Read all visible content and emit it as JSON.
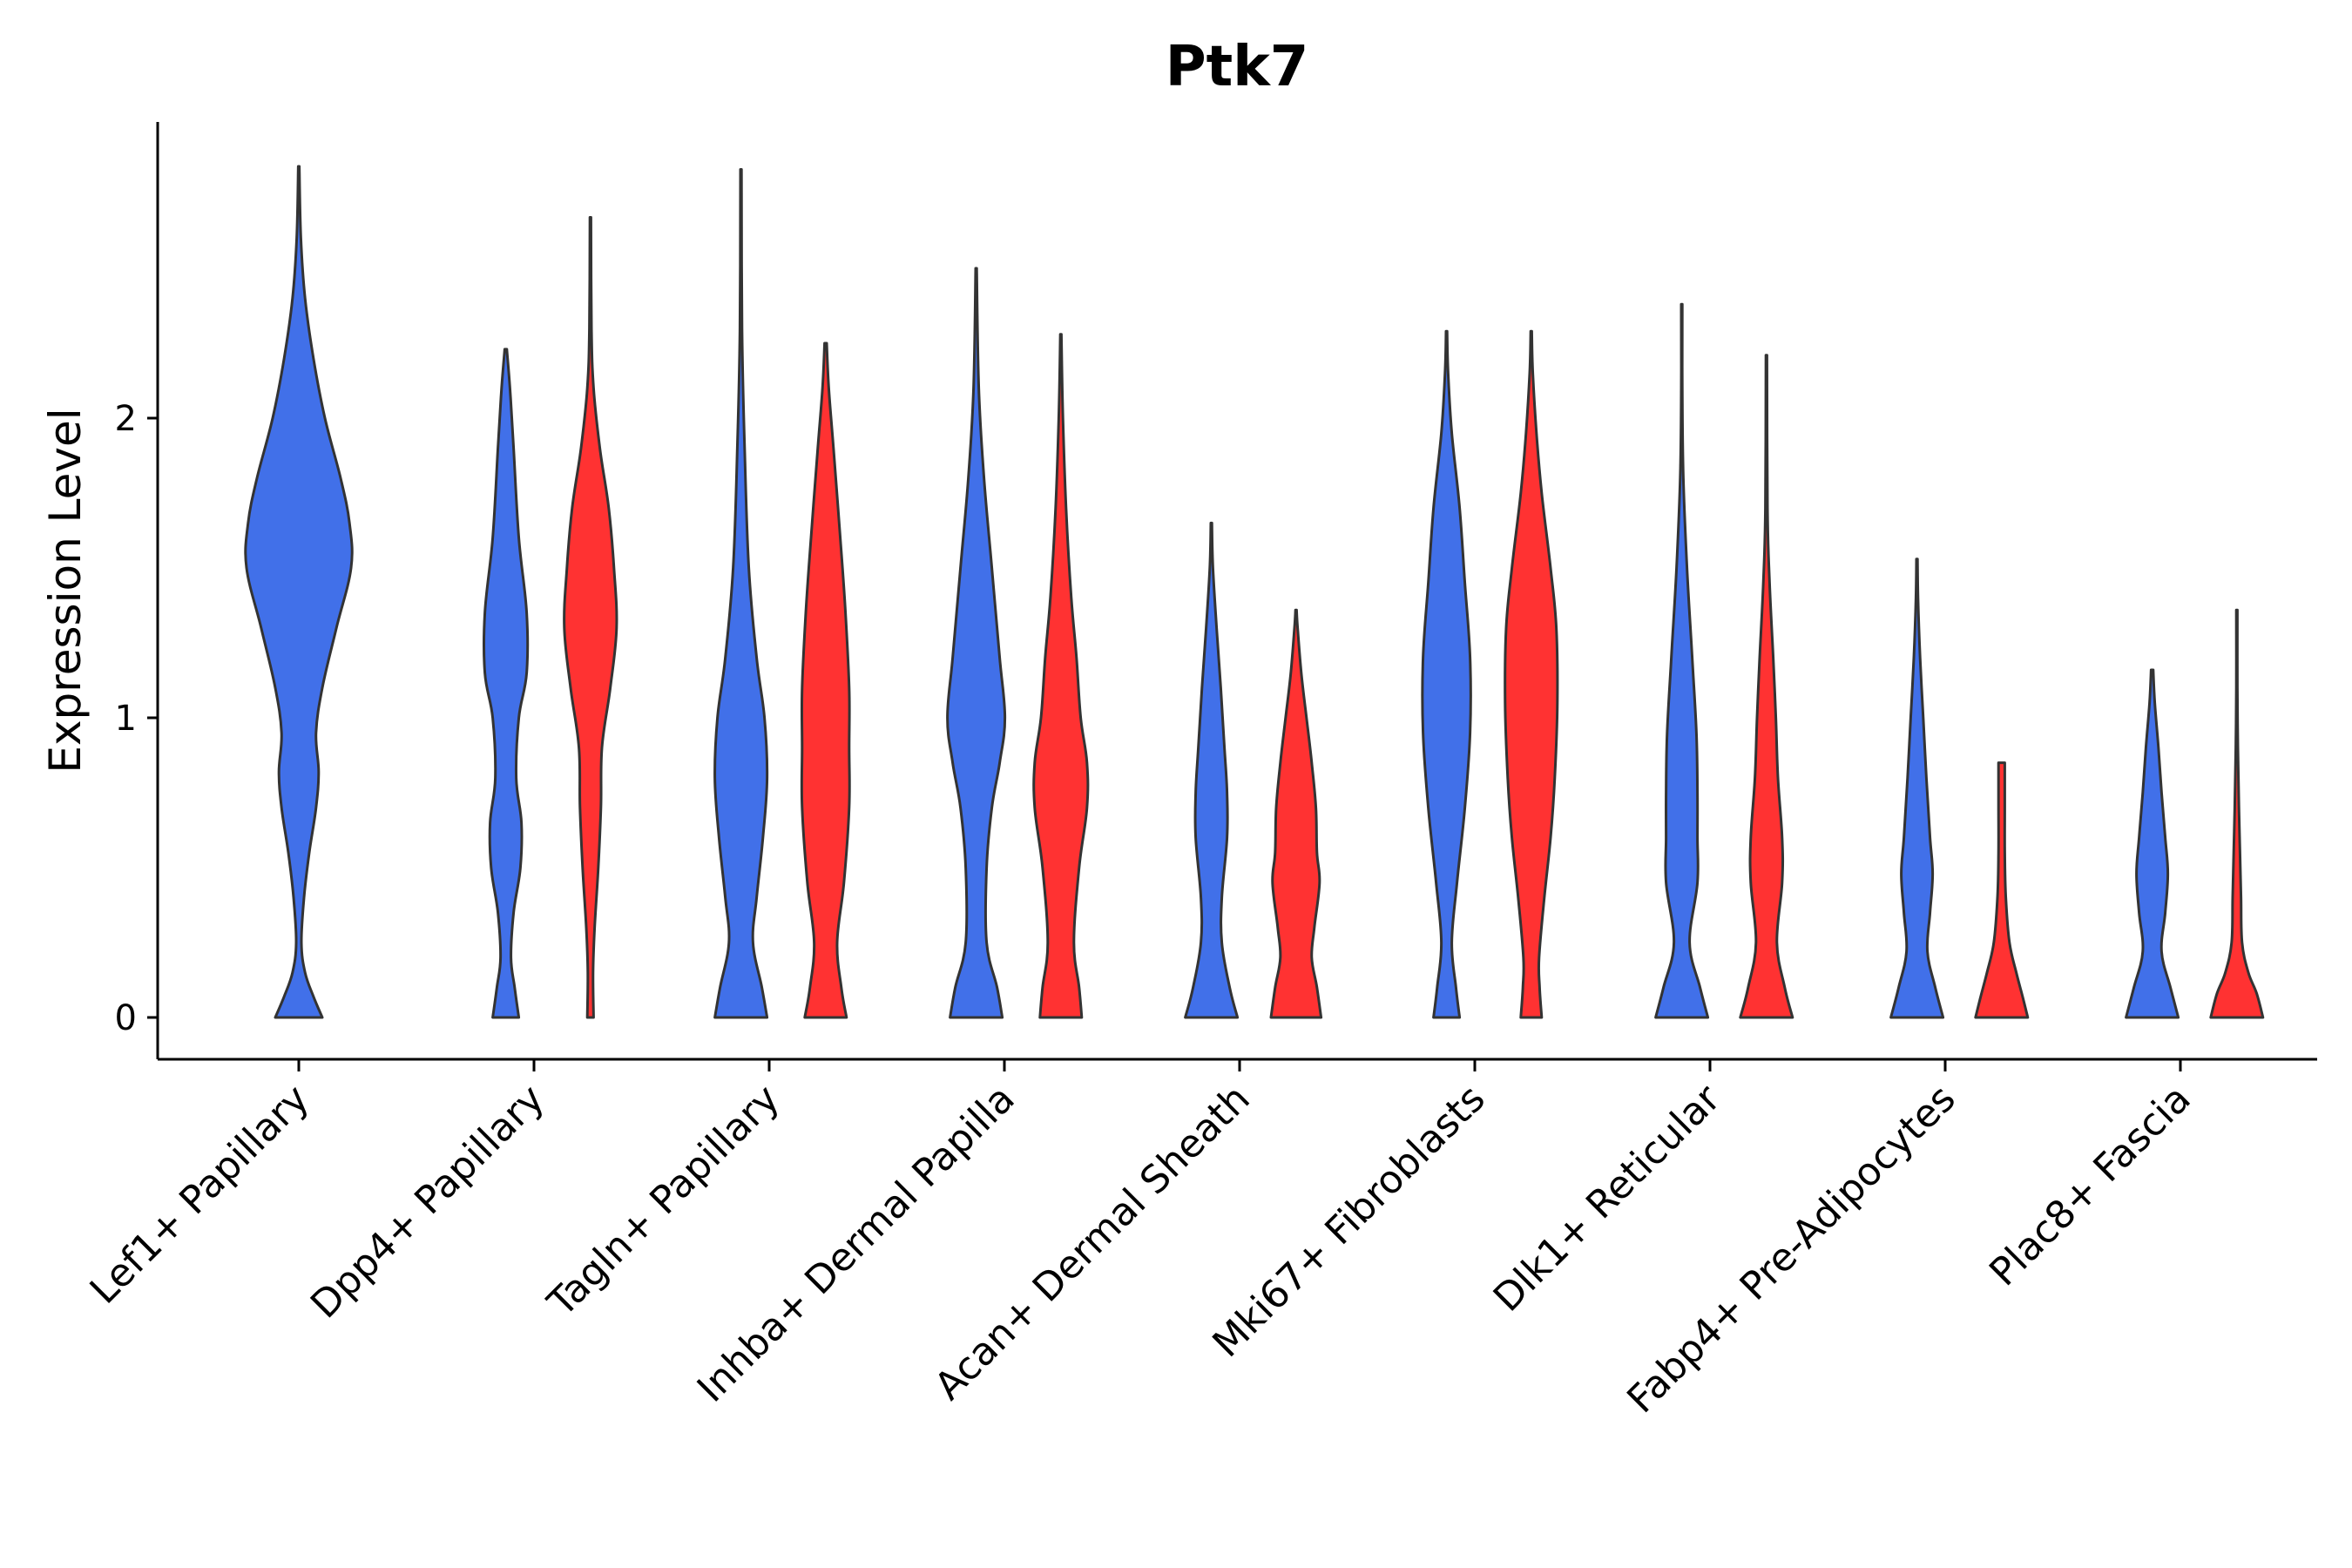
{
  "chart_data": {
    "type": "violin",
    "title": "Ptk7",
    "xlabel": "",
    "ylabel": "Expression Level",
    "ylim": [
      -0.15,
      2.95
    ],
    "yticks": [
      0,
      1,
      2
    ],
    "colors": {
      "group1": "#4170E9",
      "group2": "#FF3232",
      "outline": "#333333"
    },
    "categories": [
      "Lef1+ Papillary",
      "Dpp4+ Papillary",
      "Tagln+ Papillary",
      "Inhba+ Dermal Papilla",
      "Acan+ Dermal Sheath",
      "Mki67+ Fibroblasts",
      "Dlk1+ Reticular",
      "Fabp4+ Pre-Adipocytes",
      "Plac8+ Fascia"
    ],
    "violins": [
      {
        "category": "Lef1+ Papillary",
        "group": "group1",
        "center": 0.0,
        "max": 2.84,
        "profile": [
          [
            0,
            0.45
          ],
          [
            0.07,
            0.28
          ],
          [
            0.15,
            0.12
          ],
          [
            0.25,
            0.05
          ],
          [
            0.4,
            0.1
          ],
          [
            0.55,
            0.2
          ],
          [
            0.7,
            0.33
          ],
          [
            0.82,
            0.38
          ],
          [
            0.95,
            0.33
          ],
          [
            1.1,
            0.45
          ],
          [
            1.3,
            0.72
          ],
          [
            1.5,
            1.0
          ],
          [
            1.65,
            0.97
          ],
          [
            1.8,
            0.8
          ],
          [
            2.0,
            0.5
          ],
          [
            2.2,
            0.28
          ],
          [
            2.4,
            0.12
          ],
          [
            2.6,
            0.04
          ],
          [
            2.84,
            0.01
          ]
        ]
      },
      {
        "category": "Dpp4+ Papillary",
        "group": "group1",
        "center": -0.12,
        "max": 2.23,
        "profile": [
          [
            0,
            0.25
          ],
          [
            0.1,
            0.17
          ],
          [
            0.2,
            0.1
          ],
          [
            0.35,
            0.15
          ],
          [
            0.5,
            0.28
          ],
          [
            0.65,
            0.3
          ],
          [
            0.8,
            0.2
          ],
          [
            1.0,
            0.25
          ],
          [
            1.15,
            0.4
          ],
          [
            1.35,
            0.4
          ],
          [
            1.6,
            0.25
          ],
          [
            1.9,
            0.15
          ],
          [
            2.1,
            0.08
          ],
          [
            2.23,
            0.02
          ]
        ]
      },
      {
        "category": "Dpp4+ Papillary",
        "group": "group2",
        "center": 0.24,
        "max": 2.67,
        "profile": [
          [
            0,
            0.06
          ],
          [
            0.15,
            0.05
          ],
          [
            0.3,
            0.08
          ],
          [
            0.5,
            0.15
          ],
          [
            0.7,
            0.2
          ],
          [
            0.9,
            0.22
          ],
          [
            1.1,
            0.38
          ],
          [
            1.3,
            0.5
          ],
          [
            1.5,
            0.45
          ],
          [
            1.7,
            0.35
          ],
          [
            1.9,
            0.18
          ],
          [
            2.1,
            0.06
          ],
          [
            2.3,
            0.02
          ],
          [
            2.67,
            0.01
          ]
        ]
      },
      {
        "category": "Tagln+ Papillary",
        "group": "group1",
        "center": -0.12,
        "max": 2.83,
        "profile": [
          [
            0,
            0.5
          ],
          [
            0.1,
            0.4
          ],
          [
            0.25,
            0.23
          ],
          [
            0.4,
            0.3
          ],
          [
            0.6,
            0.42
          ],
          [
            0.8,
            0.5
          ],
          [
            1.0,
            0.45
          ],
          [
            1.2,
            0.3
          ],
          [
            1.5,
            0.15
          ],
          [
            1.9,
            0.07
          ],
          [
            2.3,
            0.02
          ],
          [
            2.83,
            0.01
          ]
        ]
      },
      {
        "category": "Tagln+ Papillary",
        "group": "group2",
        "center": 0.24,
        "max": 2.25,
        "profile": [
          [
            0,
            0.4
          ],
          [
            0.1,
            0.3
          ],
          [
            0.25,
            0.22
          ],
          [
            0.45,
            0.35
          ],
          [
            0.7,
            0.45
          ],
          [
            0.9,
            0.45
          ],
          [
            1.1,
            0.45
          ],
          [
            1.35,
            0.38
          ],
          [
            1.6,
            0.28
          ],
          [
            1.9,
            0.15
          ],
          [
            2.1,
            0.06
          ],
          [
            2.25,
            0.02
          ]
        ]
      },
      {
        "category": "Inhba+ Dermal Papilla",
        "group": "group1",
        "center": -0.12,
        "max": 2.5,
        "profile": [
          [
            0,
            0.5
          ],
          [
            0.1,
            0.4
          ],
          [
            0.25,
            0.2
          ],
          [
            0.5,
            0.2
          ],
          [
            0.7,
            0.3
          ],
          [
            0.85,
            0.45
          ],
          [
            1.0,
            0.55
          ],
          [
            1.2,
            0.45
          ],
          [
            1.5,
            0.3
          ],
          [
            1.8,
            0.15
          ],
          [
            2.1,
            0.05
          ],
          [
            2.5,
            0.01
          ]
        ]
      },
      {
        "category": "Inhba+ Dermal Papilla",
        "group": "group2",
        "center": 0.24,
        "max": 2.28,
        "profile": [
          [
            0,
            0.4
          ],
          [
            0.1,
            0.35
          ],
          [
            0.25,
            0.25
          ],
          [
            0.5,
            0.35
          ],
          [
            0.7,
            0.5
          ],
          [
            0.85,
            0.5
          ],
          [
            1.0,
            0.38
          ],
          [
            1.2,
            0.3
          ],
          [
            1.4,
            0.2
          ],
          [
            1.7,
            0.1
          ],
          [
            2.0,
            0.04
          ],
          [
            2.28,
            0.01
          ]
        ]
      },
      {
        "category": "Acan+ Dermal Sheath",
        "group": "group1",
        "center": -0.12,
        "max": 1.65,
        "profile": [
          [
            0,
            0.5
          ],
          [
            0.1,
            0.35
          ],
          [
            0.25,
            0.2
          ],
          [
            0.4,
            0.2
          ],
          [
            0.6,
            0.3
          ],
          [
            0.75,
            0.3
          ],
          [
            0.9,
            0.25
          ],
          [
            1.1,
            0.18
          ],
          [
            1.3,
            0.1
          ],
          [
            1.5,
            0.03
          ],
          [
            1.65,
            0.01
          ]
        ]
      },
      {
        "category": "Acan+ Dermal Sheath",
        "group": "group2",
        "center": 0.24,
        "max": 1.36,
        "profile": [
          [
            0,
            0.48
          ],
          [
            0.1,
            0.4
          ],
          [
            0.2,
            0.3
          ],
          [
            0.3,
            0.35
          ],
          [
            0.45,
            0.45
          ],
          [
            0.55,
            0.4
          ],
          [
            0.7,
            0.38
          ],
          [
            0.85,
            0.3
          ],
          [
            1.0,
            0.2
          ],
          [
            1.15,
            0.1
          ],
          [
            1.3,
            0.03
          ],
          [
            1.36,
            0.01
          ]
        ]
      },
      {
        "category": "Mki67+ Fibroblasts",
        "group": "group1",
        "center": -0.12,
        "max": 2.29,
        "profile": [
          [
            0,
            0.25
          ],
          [
            0.1,
            0.18
          ],
          [
            0.25,
            0.1
          ],
          [
            0.45,
            0.2
          ],
          [
            0.7,
            0.35
          ],
          [
            0.95,
            0.45
          ],
          [
            1.2,
            0.45
          ],
          [
            1.45,
            0.35
          ],
          [
            1.7,
            0.25
          ],
          [
            1.95,
            0.1
          ],
          [
            2.15,
            0.03
          ],
          [
            2.29,
            0.01
          ]
        ]
      },
      {
        "category": "Mki67+ Fibroblasts",
        "group": "group2",
        "center": 0.24,
        "max": 2.29,
        "profile": [
          [
            0,
            0.2
          ],
          [
            0.1,
            0.16
          ],
          [
            0.2,
            0.15
          ],
          [
            0.4,
            0.25
          ],
          [
            0.6,
            0.37
          ],
          [
            0.8,
            0.45
          ],
          [
            1.05,
            0.5
          ],
          [
            1.3,
            0.48
          ],
          [
            1.5,
            0.37
          ],
          [
            1.75,
            0.2
          ],
          [
            1.95,
            0.1
          ],
          [
            2.15,
            0.03
          ],
          [
            2.29,
            0.01
          ]
        ]
      },
      {
        "category": "Dlk1+ Reticular",
        "group": "group1",
        "center": -0.12,
        "max": 2.38,
        "profile": [
          [
            0,
            0.5
          ],
          [
            0.1,
            0.35
          ],
          [
            0.25,
            0.15
          ],
          [
            0.45,
            0.3
          ],
          [
            0.6,
            0.3
          ],
          [
            0.75,
            0.3
          ],
          [
            0.95,
            0.28
          ],
          [
            1.2,
            0.2
          ],
          [
            1.5,
            0.1
          ],
          [
            1.8,
            0.03
          ],
          [
            2.1,
            0.01
          ],
          [
            2.38,
            0.01
          ]
        ]
      },
      {
        "category": "Dlk1+ Reticular",
        "group": "group2",
        "center": 0.24,
        "max": 2.21,
        "profile": [
          [
            0,
            0.5
          ],
          [
            0.1,
            0.35
          ],
          [
            0.25,
            0.2
          ],
          [
            0.45,
            0.3
          ],
          [
            0.6,
            0.3
          ],
          [
            0.8,
            0.22
          ],
          [
            1.0,
            0.18
          ],
          [
            1.2,
            0.13
          ],
          [
            1.45,
            0.06
          ],
          [
            1.7,
            0.02
          ],
          [
            2.21,
            0.01
          ]
        ]
      },
      {
        "category": "Fabp4+ Pre-Adipocytes",
        "group": "group1",
        "center": -0.12,
        "max": 1.53,
        "profile": [
          [
            0,
            0.5
          ],
          [
            0.1,
            0.35
          ],
          [
            0.22,
            0.2
          ],
          [
            0.35,
            0.25
          ],
          [
            0.48,
            0.3
          ],
          [
            0.6,
            0.25
          ],
          [
            0.8,
            0.18
          ],
          [
            1.0,
            0.12
          ],
          [
            1.2,
            0.06
          ],
          [
            1.4,
            0.02
          ],
          [
            1.53,
            0.01
          ]
        ]
      },
      {
        "category": "Fabp4+ Pre-Adipocytes",
        "group": "group2",
        "center": 0.24,
        "max": 0.85,
        "profile": [
          [
            0,
            0.5
          ],
          [
            0.07,
            0.4
          ],
          [
            0.15,
            0.28
          ],
          [
            0.25,
            0.15
          ],
          [
            0.4,
            0.08
          ],
          [
            0.55,
            0.06
          ],
          [
            0.7,
            0.06
          ],
          [
            0.85,
            0.06
          ]
        ]
      },
      {
        "category": "Plac8+ Fascia",
        "group": "group1",
        "center": -0.12,
        "max": 1.16,
        "profile": [
          [
            0,
            0.5
          ],
          [
            0.1,
            0.35
          ],
          [
            0.22,
            0.18
          ],
          [
            0.35,
            0.25
          ],
          [
            0.48,
            0.3
          ],
          [
            0.6,
            0.25
          ],
          [
            0.75,
            0.18
          ],
          [
            0.9,
            0.12
          ],
          [
            1.05,
            0.05
          ],
          [
            1.16,
            0.02
          ]
        ]
      },
      {
        "category": "Plac8+ Fascia",
        "group": "group2",
        "center": 0.24,
        "max": 1.36,
        "profile": [
          [
            0,
            0.5
          ],
          [
            0.08,
            0.38
          ],
          [
            0.15,
            0.22
          ],
          [
            0.25,
            0.1
          ],
          [
            0.4,
            0.08
          ],
          [
            0.55,
            0.06
          ],
          [
            0.7,
            0.04
          ],
          [
            0.9,
            0.02
          ],
          [
            1.1,
            0.01
          ],
          [
            1.36,
            0.01
          ]
        ]
      }
    ]
  }
}
